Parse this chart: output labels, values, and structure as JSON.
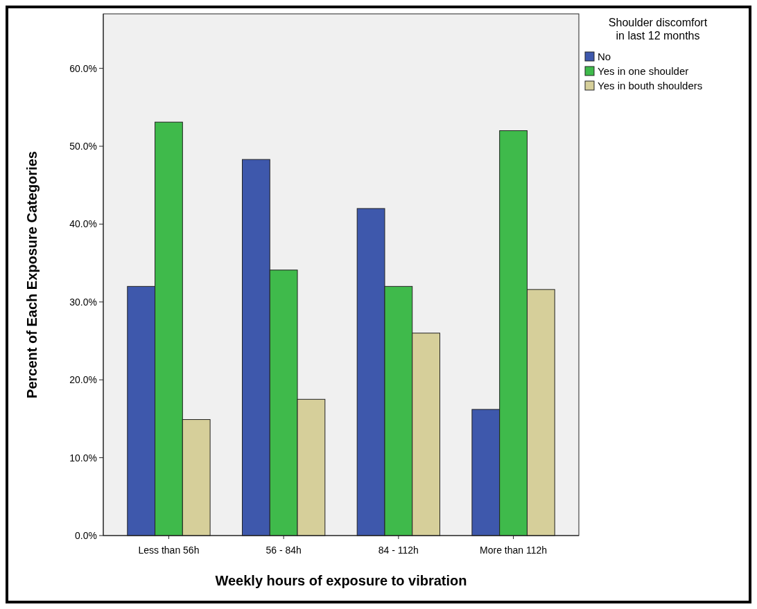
{
  "chart_data": {
    "type": "bar",
    "xlabel": "Weekly hours of exposure to vibration",
    "ylabel": "Percent of Each Exposure Categories",
    "legend_title": "Shoulder discomfort\nin last 12 months",
    "legend": "top right",
    "grid": false,
    "categories": [
      "Less than 56h",
      "56 - 84h",
      "84 - 112h",
      "More than 112h"
    ],
    "series": [
      {
        "name": "No",
        "color": "#3e58ac",
        "values": [
          32.0,
          48.3,
          42.0,
          16.2
        ]
      },
      {
        "name": "Yes in one shoulder",
        "color": "#3fba4b",
        "values": [
          53.1,
          34.1,
          32.0,
          52.0
        ]
      },
      {
        "name": "Yes in bouth shoulders",
        "color": "#d6cf9a",
        "values": [
          14.9,
          17.5,
          26.0,
          31.6
        ]
      }
    ],
    "ylim": [
      0,
      67
    ],
    "yticks": [
      {
        "value": 0,
        "label": "0.0%"
      },
      {
        "value": 10,
        "label": "10.0%"
      },
      {
        "value": 20,
        "label": "20.0%"
      },
      {
        "value": 30,
        "label": "30.0%"
      },
      {
        "value": 40,
        "label": "40.0%"
      },
      {
        "value": 50,
        "label": "50.0%"
      },
      {
        "value": 60,
        "label": "60.0%"
      }
    ]
  }
}
